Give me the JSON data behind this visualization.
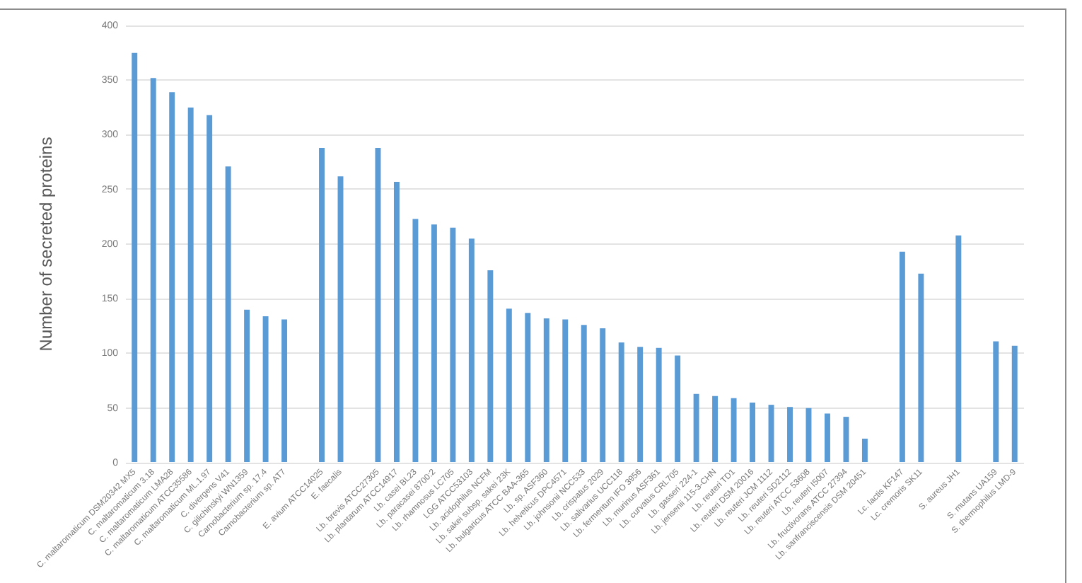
{
  "chart_data": {
    "type": "bar",
    "ylabel": "Number of secreted proteins",
    "categories": [
      "C. maltaromaticum DSM20342 MX5",
      "C. maltaromaticum 3.18",
      "C. maltaromaticum LMA28",
      "C. maltaromaticum ATCC35586",
      "C. maltaromaticum ML.1.97",
      "C. divergens V41",
      "C. gilichinskyi WN1359",
      "Carnobacterium sp. 17.4",
      "Carnobacterium sp. AT7",
      null,
      "E. avium ATCC14025",
      "E. faecalis",
      null,
      "Lb. brevis ATCC27305",
      "Lb. plantarum ATCC14917",
      "Lb. casei BL23",
      "Lb. paracasei 8700:2",
      "Lb. rhamnosus LC705",
      "LGG ATCC53103",
      "Lb. acidophilus NCFM",
      "Lb. sakei subsp. sakei 23K",
      "Lb. bulgaricus ATCC BAA-365",
      "Lb. sp. ASF360",
      "Lb. helveticus DPC4571",
      "Lb. johnsonii NCC533",
      "Lb. crispatus 2029",
      "Lb. salivarius UCC118",
      "Lb. fermentum IFO 3956",
      "Lb. murinus ASF361",
      "Lb. curvatus CRL705",
      "Lb. gasseri 224-1",
      "Lb. jensenii 115-3-CHN",
      "Lb. reuteri TD1",
      "Lb. reuteri DSM 20016",
      "Lb. reuteri JCM 1112",
      "Lb. reuteri SD2112",
      "Lb. reuteri ATCC 53608",
      "Lb. reuteri I5007",
      "Lb. fructivorans ATCC 27394",
      "Lb. sanfranciscensis DSM 20451",
      null,
      "Lc. lactis KF147",
      "Lc. cremoris SK11",
      null,
      "S. aureus JH1",
      null,
      "S. mutans UA159",
      "S. thermophilus LMD-9"
    ],
    "values": [
      375,
      352,
      339,
      325,
      318,
      271,
      140,
      134,
      131,
      null,
      288,
      262,
      null,
      288,
      257,
      223,
      218,
      215,
      205,
      176,
      141,
      137,
      132,
      131,
      126,
      123,
      110,
      106,
      105,
      98,
      63,
      61,
      59,
      55,
      53,
      51,
      50,
      45,
      42,
      22,
      null,
      193,
      173,
      null,
      208,
      null,
      111,
      107
    ],
    "color": "#5b9bd5",
    "ylim": [
      0,
      400
    ],
    "yticks": [
      0,
      50,
      100,
      150,
      200,
      250,
      300,
      350,
      400
    ],
    "grid": "y"
  }
}
